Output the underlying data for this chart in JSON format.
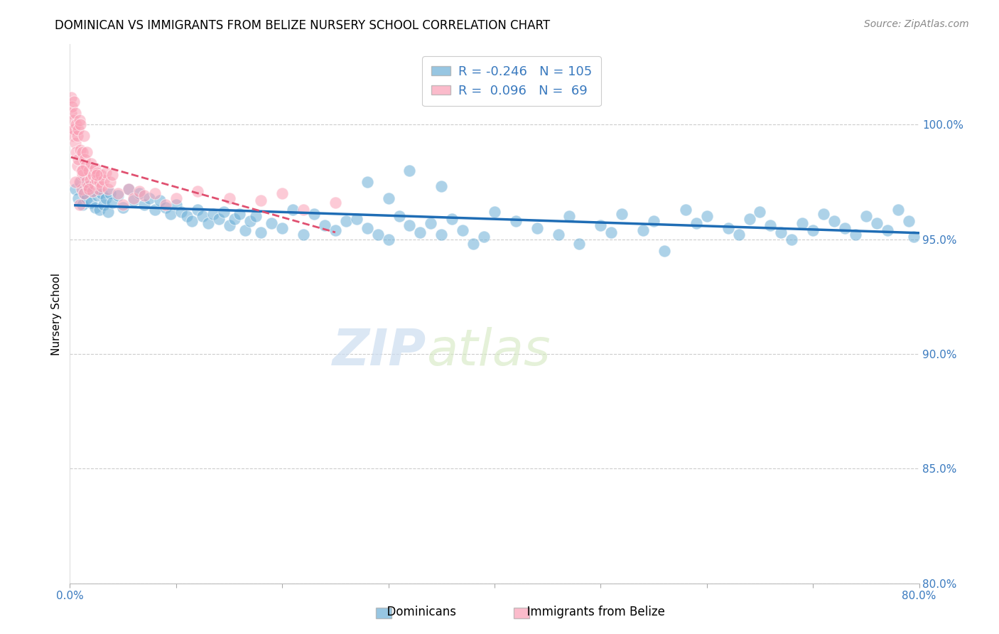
{
  "title": "DOMINICAN VS IMMIGRANTS FROM BELIZE NURSERY SCHOOL CORRELATION CHART",
  "source": "Source: ZipAtlas.com",
  "ylabel": "Nursery School",
  "right_yticks": [
    100.0,
    95.0,
    90.0,
    85.0,
    80.0
  ],
  "right_ytick_labels": [
    "100.0%",
    "95.0%",
    "90.0%",
    "85.0%",
    "80.0%"
  ],
  "xmin": 0.0,
  "xmax": 80.0,
  "ymin": 80.0,
  "ymax": 103.5,
  "blue_R": -0.246,
  "blue_N": 105,
  "pink_R": 0.096,
  "pink_N": 69,
  "blue_color": "#6baed6",
  "pink_color": "#fa9fb5",
  "blue_line_color": "#1f6db5",
  "pink_line_color": "#e05070",
  "legend_blue_label": "Dominicans",
  "legend_pink_label": "Immigrants from Belize",
  "watermark_zip": "ZIP",
  "watermark_atlas": "atlas",
  "blue_scatter_x": [
    0.5,
    0.8,
    1.0,
    1.2,
    1.4,
    1.6,
    1.8,
    2.0,
    2.2,
    2.4,
    2.6,
    2.8,
    3.0,
    3.2,
    3.4,
    3.6,
    3.8,
    4.0,
    4.5,
    5.0,
    5.5,
    6.0,
    6.5,
    7.0,
    7.5,
    8.0,
    8.5,
    9.0,
    9.5,
    10.0,
    10.5,
    11.0,
    11.5,
    12.0,
    12.5,
    13.0,
    13.5,
    14.0,
    14.5,
    15.0,
    15.5,
    16.0,
    16.5,
    17.0,
    17.5,
    18.0,
    19.0,
    20.0,
    21.0,
    22.0,
    23.0,
    24.0,
    25.0,
    26.0,
    27.0,
    28.0,
    29.0,
    30.0,
    31.0,
    32.0,
    33.0,
    34.0,
    35.0,
    36.0,
    37.0,
    38.0,
    39.0,
    40.0,
    42.0,
    44.0,
    46.0,
    47.0,
    48.0,
    50.0,
    51.0,
    52.0,
    54.0,
    55.0,
    56.0,
    58.0,
    59.0,
    60.0,
    62.0,
    63.0,
    64.0,
    65.0,
    66.0,
    67.0,
    68.0,
    69.0,
    70.0,
    71.0,
    72.0,
    73.0,
    74.0,
    75.0,
    76.0,
    77.0,
    78.0,
    79.0,
    28.0,
    30.0,
    32.0,
    35.0,
    79.5
  ],
  "blue_scatter_y": [
    97.2,
    96.8,
    97.5,
    96.5,
    97.0,
    96.8,
    97.3,
    96.6,
    97.1,
    96.4,
    96.9,
    96.3,
    97.0,
    96.5,
    96.8,
    96.2,
    97.0,
    96.6,
    96.9,
    96.4,
    97.2,
    96.7,
    97.0,
    96.5,
    96.8,
    96.3,
    96.7,
    96.4,
    96.1,
    96.5,
    96.2,
    96.0,
    95.8,
    96.3,
    96.0,
    95.7,
    96.1,
    95.9,
    96.2,
    95.6,
    95.9,
    96.1,
    95.4,
    95.8,
    96.0,
    95.3,
    95.7,
    95.5,
    96.3,
    95.2,
    96.1,
    95.6,
    95.4,
    95.8,
    95.9,
    95.5,
    95.2,
    95.0,
    96.0,
    95.6,
    95.3,
    95.7,
    95.2,
    95.9,
    95.4,
    94.8,
    95.1,
    96.2,
    95.8,
    95.5,
    95.2,
    96.0,
    94.8,
    95.6,
    95.3,
    96.1,
    95.4,
    95.8,
    94.5,
    96.3,
    95.7,
    96.0,
    95.5,
    95.2,
    95.9,
    96.2,
    95.6,
    95.3,
    95.0,
    95.7,
    95.4,
    96.1,
    95.8,
    95.5,
    95.2,
    96.0,
    95.7,
    95.4,
    96.3,
    95.8,
    97.5,
    96.8,
    98.0,
    97.3,
    95.1
  ],
  "pink_scatter_x": [
    0.1,
    0.1,
    0.2,
    0.2,
    0.3,
    0.3,
    0.4,
    0.4,
    0.5,
    0.5,
    0.6,
    0.6,
    0.7,
    0.7,
    0.8,
    0.8,
    0.9,
    0.9,
    1.0,
    1.0,
    1.1,
    1.1,
    1.2,
    1.2,
    1.3,
    1.3,
    1.4,
    1.5,
    1.5,
    1.6,
    1.7,
    1.8,
    1.9,
    2.0,
    2.1,
    2.2,
    2.3,
    2.4,
    2.5,
    2.6,
    2.7,
    2.8,
    2.9,
    3.0,
    3.2,
    3.4,
    3.6,
    3.8,
    4.0,
    4.5,
    5.0,
    5.5,
    6.0,
    6.5,
    7.0,
    8.0,
    9.0,
    10.0,
    12.0,
    15.0,
    18.0,
    20.0,
    22.0,
    25.0,
    0.5,
    0.9,
    1.2,
    1.8,
    2.5
  ],
  "pink_scatter_y": [
    101.2,
    100.5,
    100.8,
    99.8,
    100.2,
    99.5,
    101.0,
    99.8,
    100.5,
    99.2,
    98.8,
    100.0,
    99.5,
    98.2,
    99.8,
    98.5,
    100.2,
    97.5,
    98.9,
    100.0,
    97.2,
    98.0,
    98.8,
    97.8,
    99.5,
    97.0,
    98.5,
    98.2,
    97.5,
    98.8,
    97.3,
    98.0,
    97.6,
    98.3,
    97.1,
    97.8,
    97.4,
    98.1,
    97.6,
    97.9,
    97.2,
    97.5,
    97.8,
    97.3,
    97.6,
    97.9,
    97.2,
    97.5,
    97.8,
    97.0,
    96.5,
    97.2,
    96.8,
    97.1,
    96.9,
    97.0,
    96.5,
    96.8,
    97.1,
    96.8,
    96.7,
    97.0,
    96.3,
    96.6,
    97.5,
    96.5,
    98.0,
    97.2,
    97.8
  ]
}
